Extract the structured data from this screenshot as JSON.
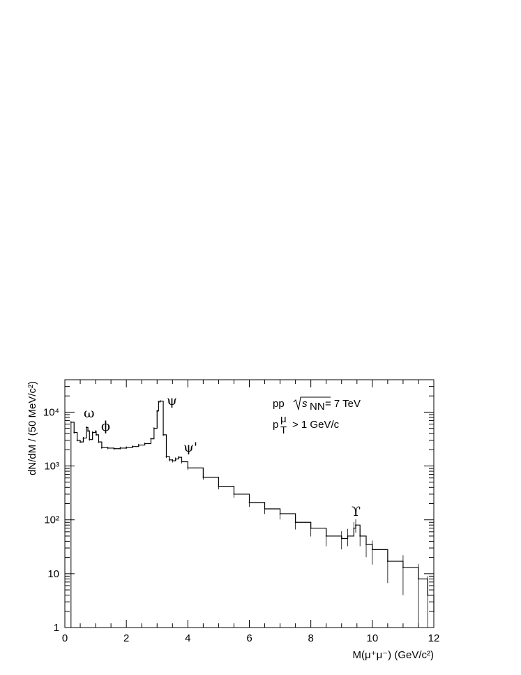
{
  "chart_data": {
    "type": "line",
    "subtype": "histogram-step",
    "xlabel": "M(μ⁺μ⁻) (GeV/c²)",
    "ylabel": "dN/dM / (50 MeV/c²)",
    "xlim": [
      0,
      12
    ],
    "ylim": [
      1,
      40000
    ],
    "y_scale": "log",
    "grid": false,
    "x_ticks": [
      0,
      2,
      4,
      6,
      8,
      10,
      12
    ],
    "x_tick_labels": [
      "0",
      "2",
      "4",
      "6",
      "8",
      "10",
      "12"
    ],
    "y_ticks": [
      1,
      10,
      100,
      1000,
      10000
    ],
    "y_tick_labels": [
      "1",
      "10",
      "10²",
      "10³",
      "10⁴"
    ],
    "annotations": {
      "omega": "ω",
      "phi": "ϕ",
      "psi": "ψ",
      "psi_prime": "ψ'",
      "upsilon": "ϒ",
      "beam_info_prefix": "pp",
      "sqrt_s": "√s",
      "sqrt_s_subscript": "NN",
      "energy": "= 7 TeV",
      "pt_cut_p": "p",
      "pt_cut_sup": "μ",
      "pt_cut_sub": "T",
      "pt_cut_value": "> 1 GeV/c"
    },
    "series": [
      {
        "x": [
          0.2,
          0.3,
          0.4,
          0.5,
          0.6,
          0.7,
          0.75,
          0.8,
          0.9,
          1.0,
          1.02,
          1.1,
          1.2,
          1.4,
          1.6,
          1.8,
          2.0,
          2.2,
          2.4,
          2.6,
          2.8,
          2.9,
          3.0,
          3.05,
          3.1,
          3.2,
          3.3,
          3.4,
          3.5,
          3.6,
          3.7,
          3.8,
          4.0,
          4.5,
          5.0,
          5.5,
          6.0,
          6.5,
          7.0,
          7.5,
          8.0,
          8.5,
          9.0,
          9.2,
          9.4,
          9.46,
          9.6,
          9.8,
          10.0,
          10.5,
          11.0,
          11.5,
          11.8,
          12.0
        ],
        "y": [
          6500,
          4200,
          3000,
          2800,
          3300,
          5200,
          4500,
          3100,
          4200,
          4400,
          3800,
          2800,
          2200,
          2150,
          2100,
          2150,
          2200,
          2300,
          2450,
          2600,
          3200,
          5000,
          10500,
          15500,
          16000,
          3800,
          1500,
          1300,
          1250,
          1350,
          1450,
          1200,
          920,
          620,
          420,
          300,
          210,
          160,
          130,
          90,
          70,
          50,
          45,
          50,
          70,
          80,
          50,
          35,
          28,
          17,
          13,
          8,
          4,
          2
        ]
      }
    ]
  }
}
